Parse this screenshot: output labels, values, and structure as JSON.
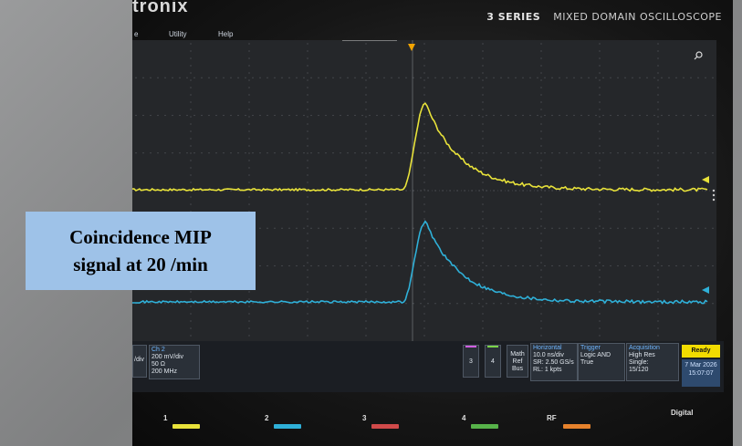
{
  "photo": {
    "brand": "tronix",
    "series": "3 SERIES",
    "model": "MIXED DOMAIN OSCILLOSCOPE"
  },
  "menu": {
    "items": [
      "e",
      "Utility",
      "Help"
    ]
  },
  "trigger_marker": "T",
  "overlay": {
    "line1": "Coincidence MIP",
    "line2": "signal at 20 /min"
  },
  "status_bar": {
    "ch1_scale": "/div",
    "ch2": {
      "header": "Ch 2",
      "scale": "200 mV/div",
      "impedance": "50 Ω",
      "bandwidth": "200 MHz"
    },
    "btn3": "3",
    "btn4": "4",
    "math_ref_bus": [
      "Math",
      "Ref",
      "Bus"
    ],
    "horizontal": {
      "header": "Horizontal",
      "line1": "10.0 ns/div",
      "line2": "SR: 2.50 GS/s",
      "line3": "RL: 1 kpts"
    },
    "trigger": {
      "header": "Trigger",
      "line1": "Logic AND",
      "line2": "True"
    },
    "acquisition": {
      "header": "Acquisition",
      "line1": "High Res",
      "line2": "Single:",
      "line3": "15/120"
    },
    "ready": "Ready",
    "date": "7 Mar 2026",
    "time": "15:07:07"
  },
  "bottom_buttons": {
    "b1": "1",
    "b2": "2",
    "b3": "3",
    "b4": "4",
    "rf": "RF",
    "digital": "Digital"
  },
  "colors": {
    "ch1": "#e8e23a",
    "ch2": "#2fb0d8",
    "grid_bg": "#2b2d30",
    "overlay_bg": "#9ec2e8"
  },
  "traces": {
    "time_divs": 10,
    "ch1": {
      "baseline": 0.0,
      "peak": 0.78,
      "rise_start": 0.47,
      "peak_time": 0.51
    },
    "ch2": {
      "baseline": 0.0,
      "peak": 0.72,
      "rise_start": 0.47,
      "peak_time": 0.51
    }
  }
}
